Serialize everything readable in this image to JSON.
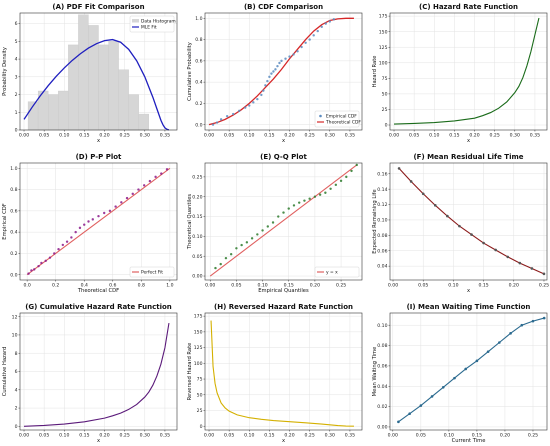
{
  "figure": {
    "background": "#ffffff",
    "grid_color": "#e3e3e3",
    "axis_color": "#333333"
  },
  "chart_data": [
    {
      "id": "A",
      "type": "bar+line",
      "title": "(A) PDF Fit Comparison",
      "xlabel": "x",
      "ylabel": "Probability Density",
      "xlim": [
        -0.01,
        0.38
      ],
      "ylim": [
        0,
        6.6
      ],
      "xticks": [
        0.0,
        0.05,
        0.1,
        0.15,
        0.2,
        0.25,
        0.3,
        0.35
      ],
      "xtick_labels": [
        "0.00",
        "0.05",
        "0.10",
        "0.15",
        "0.20",
        "0.25",
        "0.30",
        "0.35"
      ],
      "yticks": [
        0,
        1,
        2,
        3,
        4,
        5,
        6
      ],
      "ytick_labels": [
        "0",
        "1",
        "2",
        "3",
        "4",
        "5",
        "6"
      ],
      "histogram": {
        "name": "Data Histogram",
        "color": "#d6d6d6",
        "bin_edges": [
          0.01,
          0.035,
          0.06,
          0.085,
          0.11,
          0.135,
          0.16,
          0.185,
          0.21,
          0.235,
          0.26,
          0.285,
          0.31
        ],
        "values": [
          1.6,
          2.2,
          2.0,
          2.2,
          4.8,
          6.5,
          5.9,
          4.8,
          5.0,
          3.4,
          2.0,
          0.9
        ]
      },
      "series": [
        {
          "name": "MLE Fit",
          "color": "#1f1fbf",
          "x": [
            0.0,
            0.02,
            0.04,
            0.06,
            0.08,
            0.1,
            0.12,
            0.14,
            0.16,
            0.18,
            0.2,
            0.22,
            0.24,
            0.26,
            0.28,
            0.3,
            0.32,
            0.33,
            0.34,
            0.345,
            0.35,
            0.355,
            0.36
          ],
          "y": [
            0.6,
            1.28,
            1.92,
            2.5,
            3.03,
            3.5,
            3.93,
            4.3,
            4.62,
            4.87,
            5.04,
            5.1,
            4.95,
            4.55,
            3.9,
            3.0,
            1.85,
            1.2,
            0.55,
            0.3,
            0.12,
            0.04,
            0.01
          ]
        }
      ],
      "legend": [
        "Data Histogram",
        "MLE Fit"
      ],
      "legend_loc": "upper-right"
    },
    {
      "id": "B",
      "type": "scatter+line",
      "title": "(B) CDF Comparison",
      "xlabel": "x",
      "ylabel": "Cumulative Probability",
      "xlim": [
        -0.01,
        0.38
      ],
      "ylim": [
        -0.05,
        1.05
      ],
      "xticks": [
        0.0,
        0.05,
        0.1,
        0.15,
        0.2,
        0.25,
        0.3,
        0.35
      ],
      "xtick_labels": [
        "0.00",
        "0.05",
        "0.10",
        "0.15",
        "0.20",
        "0.25",
        "0.30",
        "0.35"
      ],
      "yticks": [
        0.0,
        0.2,
        0.4,
        0.6,
        0.8,
        1.0
      ],
      "ytick_labels": [
        "0.0",
        "0.2",
        "0.4",
        "0.6",
        "0.8",
        "1.0"
      ],
      "scatter": {
        "name": "Empirical CDF",
        "color": "#5b8bbf",
        "x": [
          0.01,
          0.02,
          0.03,
          0.045,
          0.06,
          0.075,
          0.09,
          0.1,
          0.11,
          0.12,
          0.13,
          0.135,
          0.14,
          0.145,
          0.15,
          0.155,
          0.16,
          0.165,
          0.17,
          0.175,
          0.18,
          0.19,
          0.2,
          0.21,
          0.22,
          0.23,
          0.24,
          0.25,
          0.26,
          0.27,
          0.28,
          0.29,
          0.3,
          0.31
        ],
        "y": [
          0.0,
          0.02,
          0.05,
          0.08,
          0.1,
          0.13,
          0.16,
          0.18,
          0.21,
          0.24,
          0.28,
          0.32,
          0.37,
          0.41,
          0.45,
          0.48,
          0.5,
          0.52,
          0.55,
          0.58,
          0.6,
          0.62,
          0.64,
          0.66,
          0.69,
          0.73,
          0.77,
          0.8,
          0.84,
          0.88,
          0.92,
          0.95,
          0.97,
          0.99
        ]
      },
      "series": [
        {
          "name": "Theoretical CDF",
          "color": "#d62728",
          "x": [
            0.0,
            0.02,
            0.04,
            0.06,
            0.08,
            0.1,
            0.12,
            0.14,
            0.16,
            0.18,
            0.2,
            0.22,
            0.24,
            0.26,
            0.28,
            0.3,
            0.32,
            0.34,
            0.36
          ],
          "y": [
            0.0,
            0.02,
            0.05,
            0.09,
            0.14,
            0.2,
            0.27,
            0.35,
            0.43,
            0.52,
            0.62,
            0.71,
            0.8,
            0.88,
            0.94,
            0.98,
            0.995,
            1.0,
            1.0
          ]
        }
      ],
      "legend": [
        "Empirical CDF",
        "Theoretical CDF"
      ],
      "legend_loc": "lower-right"
    },
    {
      "id": "C",
      "type": "line",
      "title": "(C) Hazard Rate Function",
      "xlabel": "x",
      "ylabel": "Hazard Rate",
      "xlim": [
        -0.01,
        0.38
      ],
      "ylim": [
        -8,
        180
      ],
      "xticks": [
        0.0,
        0.05,
        0.1,
        0.15,
        0.2,
        0.25,
        0.3,
        0.35
      ],
      "xtick_labels": [
        "0.00",
        "0.05",
        "0.10",
        "0.15",
        "0.20",
        "0.25",
        "0.30",
        "0.35"
      ],
      "yticks": [
        0,
        25,
        50,
        75,
        100,
        125,
        150,
        175
      ],
      "ytick_labels": [
        "0",
        "25",
        "50",
        "75",
        "100",
        "125",
        "150",
        "175"
      ],
      "series": [
        {
          "color": "#1a6b1a",
          "x": [
            0.0,
            0.05,
            0.1,
            0.15,
            0.2,
            0.22,
            0.24,
            0.26,
            0.28,
            0.3,
            0.31,
            0.32,
            0.33,
            0.34,
            0.35,
            0.36
          ],
          "y": [
            1.5,
            2.5,
            4.0,
            6.5,
            11,
            15,
            20,
            27,
            37,
            52,
            62,
            76,
            95,
            118,
            145,
            172
          ]
        }
      ]
    },
    {
      "id": "D",
      "type": "scatter+line",
      "title": "(D) P-P Plot",
      "xlabel": "Theoretical CDF",
      "ylabel": "Empirical CDF",
      "xlim": [
        -0.05,
        1.05
      ],
      "ylim": [
        -0.05,
        1.05
      ],
      "xticks": [
        0.0,
        0.2,
        0.4,
        0.6,
        0.8,
        1.0
      ],
      "xtick_labels": [
        "0.0",
        "0.2",
        "0.4",
        "0.6",
        "0.8",
        "1.0"
      ],
      "yticks": [
        0.0,
        0.2,
        0.4,
        0.6,
        0.8,
        1.0
      ],
      "ytick_labels": [
        "0.0",
        "0.2",
        "0.4",
        "0.6",
        "0.8",
        "1.0"
      ],
      "scatter": {
        "color": "#8b1a8b",
        "x": [
          0.01,
          0.03,
          0.05,
          0.08,
          0.1,
          0.13,
          0.16,
          0.19,
          0.22,
          0.25,
          0.28,
          0.31,
          0.34,
          0.37,
          0.4,
          0.43,
          0.46,
          0.5,
          0.54,
          0.58,
          0.62,
          0.66,
          0.7,
          0.74,
          0.78,
          0.82,
          0.86,
          0.9,
          0.94,
          0.98
        ],
        "y": [
          0.01,
          0.04,
          0.05,
          0.08,
          0.11,
          0.13,
          0.16,
          0.2,
          0.24,
          0.28,
          0.31,
          0.35,
          0.4,
          0.44,
          0.47,
          0.5,
          0.52,
          0.55,
          0.58,
          0.6,
          0.64,
          0.68,
          0.72,
          0.76,
          0.8,
          0.84,
          0.88,
          0.92,
          0.95,
          0.99
        ]
      },
      "series": [
        {
          "name": "Perfect Fit",
          "color": "#e06060",
          "x": [
            0,
            1
          ],
          "y": [
            0,
            1
          ]
        }
      ],
      "legend": [
        "Perfect Fit"
      ],
      "legend_loc": "lower-right"
    },
    {
      "id": "E",
      "type": "scatter+line",
      "title": "(E) Q-Q Plot",
      "xlabel": "Empirical Quantiles",
      "ylabel": "Theoretical Quantiles",
      "xlim": [
        -0.01,
        0.29
      ],
      "ylim": [
        -0.01,
        0.285
      ],
      "xticks": [
        0.0,
        0.05,
        0.1,
        0.15,
        0.2,
        0.25
      ],
      "xtick_labels": [
        "0.00",
        "0.05",
        "0.10",
        "0.15",
        "0.20",
        "0.25"
      ],
      "yticks": [
        0.0,
        0.05,
        0.1,
        0.15,
        0.2,
        0.25
      ],
      "ytick_labels": [
        "0.00",
        "0.05",
        "0.10",
        "0.15",
        "0.20",
        "0.25"
      ],
      "scatter": {
        "color": "#2c7a2c",
        "x": [
          0.01,
          0.02,
          0.03,
          0.04,
          0.05,
          0.06,
          0.07,
          0.08,
          0.09,
          0.1,
          0.11,
          0.12,
          0.13,
          0.14,
          0.15,
          0.16,
          0.17,
          0.18,
          0.19,
          0.2,
          0.21,
          0.22,
          0.23,
          0.24,
          0.25,
          0.26,
          0.27,
          0.28
        ],
        "y": [
          0.02,
          0.03,
          0.045,
          0.055,
          0.07,
          0.078,
          0.085,
          0.095,
          0.105,
          0.115,
          0.125,
          0.135,
          0.15,
          0.16,
          0.17,
          0.178,
          0.185,
          0.19,
          0.195,
          0.2,
          0.205,
          0.21,
          0.22,
          0.23,
          0.24,
          0.25,
          0.265,
          0.28
        ]
      },
      "series": [
        {
          "name": "y = x",
          "color": "#e06060",
          "x": [
            0,
            0.28
          ],
          "y": [
            0,
            0.28
          ]
        }
      ],
      "legend": [
        "y = x"
      ],
      "legend_loc": "lower-right"
    },
    {
      "id": "F",
      "type": "line",
      "title": "(F) Mean Residual Life Time",
      "xlabel": "x",
      "ylabel": "Expected Remaining Life",
      "xlim": [
        -0.005,
        0.255
      ],
      "ylim": [
        0.022,
        0.174
      ],
      "xticks": [
        0.0,
        0.05,
        0.1,
        0.15,
        0.2,
        0.25
      ],
      "xtick_labels": [
        "0.00",
        "0.05",
        "0.10",
        "0.15",
        "0.20",
        "0.25"
      ],
      "yticks": [
        0.04,
        0.06,
        0.08,
        0.1,
        0.12,
        0.14,
        0.16
      ],
      "ytick_labels": [
        "0.04",
        "0.06",
        "0.08",
        "0.10",
        "0.12",
        "0.14",
        "0.16"
      ],
      "series": [
        {
          "color": "#8b1a1a",
          "markers": true,
          "x": [
            0.01,
            0.03,
            0.05,
            0.07,
            0.09,
            0.11,
            0.13,
            0.15,
            0.17,
            0.19,
            0.21,
            0.23,
            0.25
          ],
          "y": [
            0.167,
            0.15,
            0.134,
            0.119,
            0.105,
            0.092,
            0.081,
            0.07,
            0.061,
            0.052,
            0.044,
            0.037,
            0.03
          ]
        }
      ]
    },
    {
      "id": "G",
      "type": "line",
      "title": "(G) Cumulative Hazard Rate Function",
      "xlabel": "x",
      "ylabel": "Cumulative Hazard",
      "xlim": [
        -0.01,
        0.38
      ],
      "ylim": [
        -0.4,
        12.4
      ],
      "xticks": [
        0.0,
        0.05,
        0.1,
        0.15,
        0.2,
        0.25,
        0.3,
        0.35
      ],
      "xtick_labels": [
        "0.00",
        "0.05",
        "0.10",
        "0.15",
        "0.20",
        "0.25",
        "0.30",
        "0.35"
      ],
      "yticks": [
        0,
        2,
        4,
        6,
        8,
        10,
        12
      ],
      "ytick_labels": [
        "0",
        "2",
        "4",
        "6",
        "8",
        "10",
        "12"
      ],
      "series": [
        {
          "color": "#5b1a7a",
          "x": [
            0.0,
            0.05,
            0.1,
            0.15,
            0.2,
            0.22,
            0.24,
            0.26,
            0.28,
            0.3,
            0.31,
            0.32,
            0.33,
            0.34,
            0.35,
            0.36
          ],
          "y": [
            0.0,
            0.1,
            0.25,
            0.5,
            0.9,
            1.15,
            1.45,
            1.85,
            2.4,
            3.2,
            3.75,
            4.5,
            5.5,
            6.8,
            8.6,
            11.3
          ]
        }
      ]
    },
    {
      "id": "H",
      "type": "line",
      "title": "(H) Reversed Hazard Rate Function",
      "xlabel": "x",
      "ylabel": "Reversed Hazard Rate",
      "xlim": [
        -0.01,
        0.38
      ],
      "ylim": [
        -6,
        180
      ],
      "xticks": [
        0.0,
        0.05,
        0.1,
        0.15,
        0.2,
        0.25,
        0.3,
        0.35
      ],
      "xtick_labels": [
        "0.00",
        "0.05",
        "0.10",
        "0.15",
        "0.20",
        "0.25",
        "0.30",
        "0.35"
      ],
      "yticks": [
        0,
        25,
        50,
        75,
        100,
        125,
        150,
        175
      ],
      "ytick_labels": [
        "0",
        "25",
        "50",
        "75",
        "100",
        "125",
        "150",
        "175"
      ],
      "series": [
        {
          "color": "#d4b000",
          "x": [
            0.005,
            0.01,
            0.015,
            0.02,
            0.03,
            0.04,
            0.05,
            0.07,
            0.1,
            0.13,
            0.16,
            0.2,
            0.24,
            0.28,
            0.3,
            0.32,
            0.34,
            0.36
          ],
          "y": [
            168,
            95,
            68,
            53,
            37,
            29,
            24,
            18,
            13.5,
            11,
            9,
            7.2,
            5.5,
            3.5,
            2.2,
            1.0,
            0.3,
            0.0
          ]
        }
      ]
    },
    {
      "id": "I",
      "type": "line",
      "title": "(I) Mean Waiting Time Function",
      "xlabel": "Current Time",
      "ylabel": "Mean Waiting Time",
      "xlim": [
        -0.005,
        0.275
      ],
      "ylim": [
        -0.003,
        0.112
      ],
      "xticks": [
        0.0,
        0.05,
        0.1,
        0.15,
        0.2,
        0.25
      ],
      "xtick_labels": [
        "0.00",
        "0.05",
        "0.10",
        "0.15",
        "0.20",
        "0.25"
      ],
      "yticks": [
        0.0,
        0.02,
        0.04,
        0.06,
        0.08,
        0.1
      ],
      "ytick_labels": [
        "0.00",
        "0.02",
        "0.04",
        "0.06",
        "0.08",
        "0.10"
      ],
      "series": [
        {
          "color": "#2b6a8f",
          "markers": true,
          "x": [
            0.01,
            0.03,
            0.05,
            0.07,
            0.09,
            0.11,
            0.13,
            0.15,
            0.17,
            0.19,
            0.21,
            0.23,
            0.25,
            0.27
          ],
          "y": [
            0.005,
            0.013,
            0.021,
            0.03,
            0.039,
            0.048,
            0.057,
            0.065,
            0.074,
            0.083,
            0.092,
            0.1,
            0.104,
            0.107
          ]
        }
      ]
    }
  ]
}
